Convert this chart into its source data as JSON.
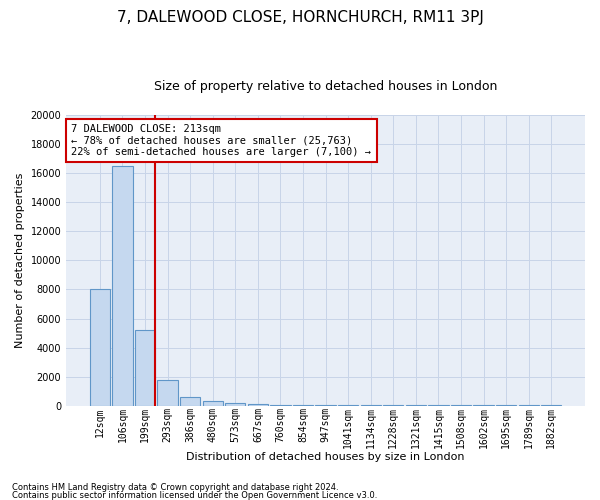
{
  "title": "7, DALEWOOD CLOSE, HORNCHURCH, RM11 3PJ",
  "subtitle": "Size of property relative to detached houses in London",
  "xlabel": "Distribution of detached houses by size in London",
  "ylabel": "Number of detached properties",
  "footnote1": "Contains HM Land Registry data © Crown copyright and database right 2024.",
  "footnote2": "Contains public sector information licensed under the Open Government Licence v3.0.",
  "annotation_title": "7 DALEWOOD CLOSE: 213sqm",
  "annotation_line1": "← 78% of detached houses are smaller (25,763)",
  "annotation_line2": "22% of semi-detached houses are larger (7,100) →",
  "bar_color": "#c5d8ef",
  "bar_edge_color": "#6096c8",
  "line_color": "#cc0000",
  "annotation_box_edge_color": "#cc0000",
  "categories": [
    "12sqm",
    "106sqm",
    "199sqm",
    "293sqm",
    "386sqm",
    "480sqm",
    "573sqm",
    "667sqm",
    "760sqm",
    "854sqm",
    "947sqm",
    "1041sqm",
    "1134sqm",
    "1228sqm",
    "1321sqm",
    "1415sqm",
    "1508sqm",
    "1602sqm",
    "1695sqm",
    "1789sqm",
    "1882sqm"
  ],
  "bar_values": [
    8000,
    16500,
    5200,
    1800,
    600,
    300,
    200,
    100,
    50,
    50,
    50,
    50,
    50,
    50,
    50,
    50,
    50,
    50,
    50,
    50,
    50
  ],
  "property_line_x": 2.43,
  "ylim": [
    0,
    20000
  ],
  "yticks": [
    0,
    2000,
    4000,
    6000,
    8000,
    10000,
    12000,
    14000,
    16000,
    18000,
    20000
  ],
  "plot_bg_color": "#e8eef7",
  "grid_color": "#c8d4e8",
  "title_fontsize": 11,
  "subtitle_fontsize": 9,
  "tick_fontsize": 7,
  "ylabel_fontsize": 8,
  "xlabel_fontsize": 8,
  "footnote_fontsize": 6,
  "annotation_fontsize": 7.5
}
